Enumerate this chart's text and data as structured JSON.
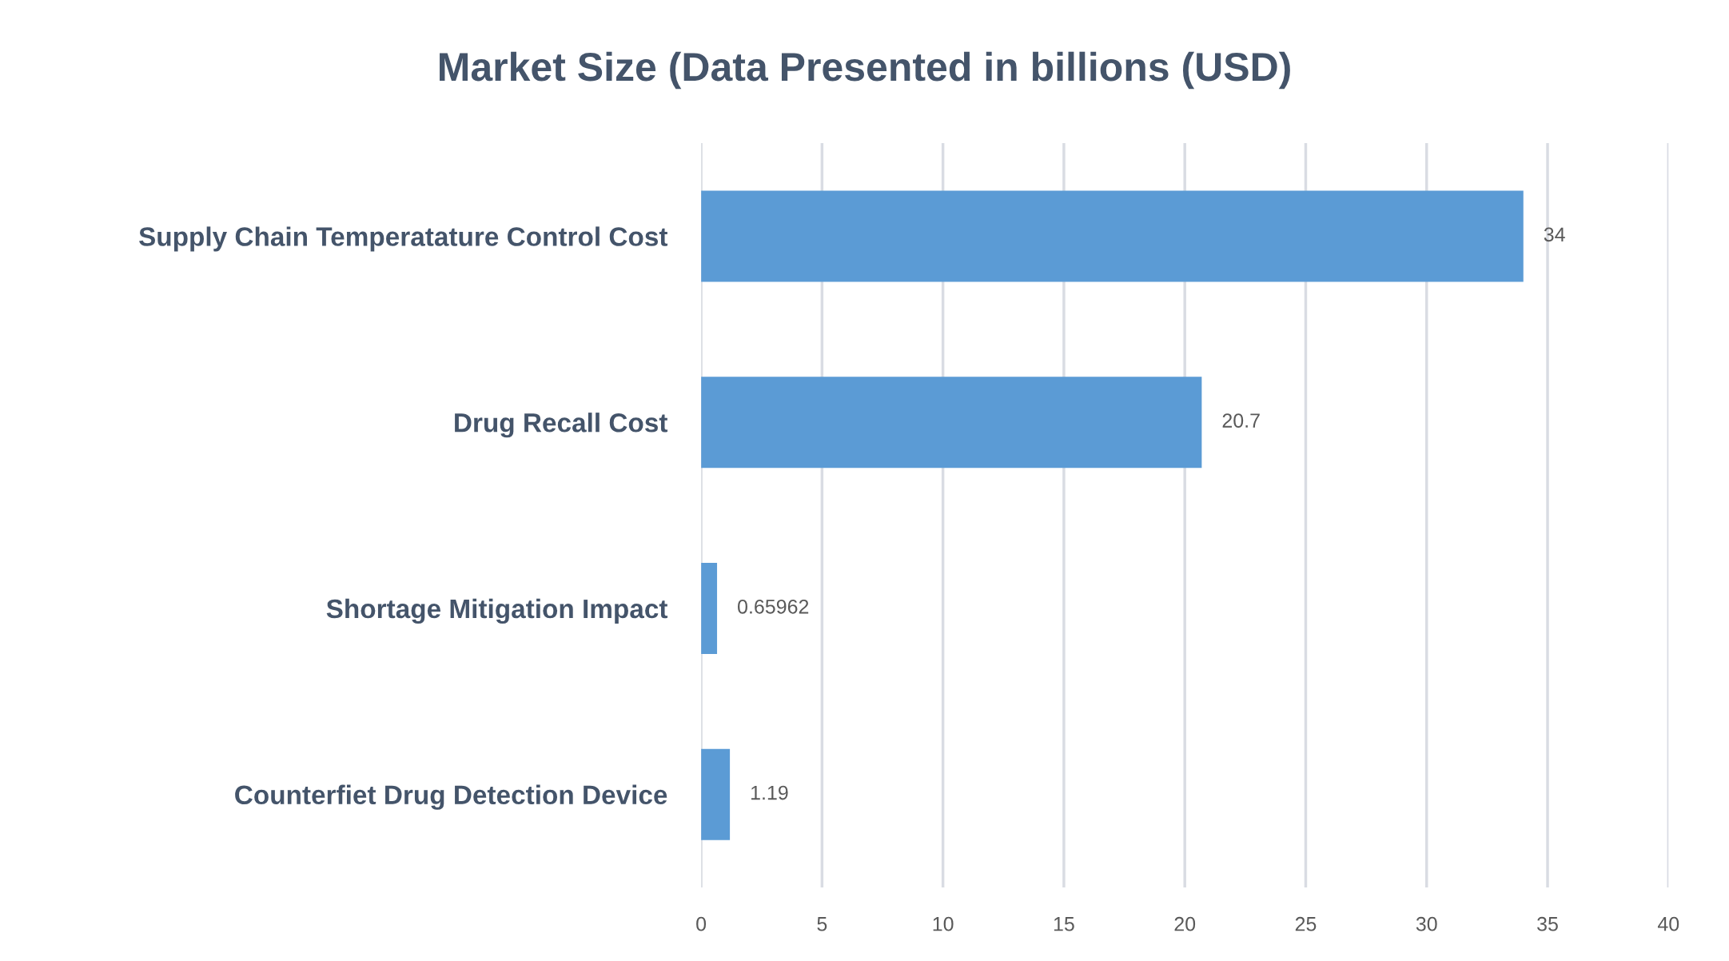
{
  "chart_data": {
    "type": "bar",
    "orientation": "horizontal",
    "title": "Market Size (Data Presented in billions (USD)",
    "categories": [
      "Supply Chain Temperatature Control Cost",
      "Drug Recall Cost",
      "Shortage Mitigation Impact",
      "Counterfiet Drug Detection Device"
    ],
    "values": [
      34,
      20.7,
      0.65962,
      1.19
    ],
    "color": "#5b9bd5",
    "xlim": [
      0,
      40
    ],
    "xticks": [
      0,
      5,
      10,
      15,
      20,
      25,
      30,
      35,
      40
    ],
    "grid": "x",
    "data_labels": true
  }
}
